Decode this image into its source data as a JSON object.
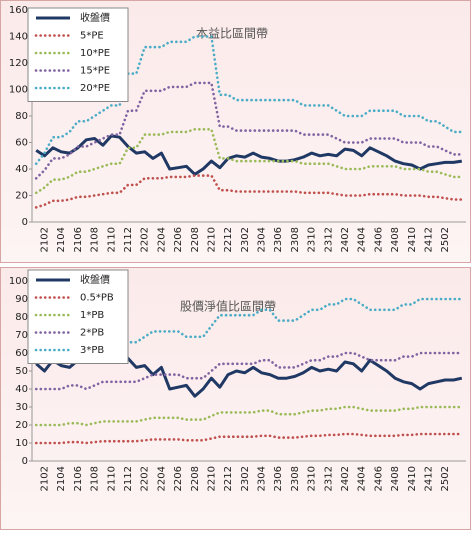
{
  "chart_data": [
    {
      "type": "line",
      "title": "本益比區間帶",
      "categories": [
        null,
        "2102",
        null,
        "2104",
        null,
        "2106",
        null,
        "2108",
        null,
        "2110",
        null,
        "2112",
        null,
        "2202",
        null,
        "2204",
        null,
        "2206",
        null,
        "2208",
        null,
        "2210",
        null,
        "2212",
        null,
        "2302",
        null,
        "2304",
        null,
        "2306",
        null,
        "2308",
        null,
        "2310",
        null,
        "2312",
        null,
        "2402",
        null,
        "2404",
        null,
        "2406",
        null,
        "2408",
        null,
        "2410",
        null,
        "2412",
        null,
        "2502",
        null,
        null
      ],
      "series": [
        {
          "name": "收盤價",
          "color": "#1f3864",
          "style": "solid",
          "values": [
            54,
            50,
            56,
            53,
            52,
            56,
            62,
            63,
            58,
            65,
            64,
            57,
            52,
            53,
            48,
            52,
            40,
            41,
            42,
            36,
            40,
            46,
            41,
            48,
            50,
            49,
            52,
            49,
            48,
            46,
            46,
            47,
            49,
            52,
            50,
            51,
            50,
            55,
            54,
            50,
            56,
            53,
            50,
            46,
            44,
            43,
            40,
            43,
            44,
            45,
            45,
            46
          ]
        },
        {
          "name": "5*PE",
          "color": "#c0504d",
          "style": "dotted",
          "values": [
            11,
            13,
            16,
            16,
            17,
            19,
            19,
            20,
            21,
            22,
            22,
            28,
            28,
            33,
            33,
            33,
            34,
            34,
            34,
            35,
            35,
            35,
            24,
            24,
            23,
            23,
            23,
            23,
            23,
            23,
            23,
            23,
            22,
            22,
            22,
            22,
            21,
            20,
            20,
            20,
            21,
            21,
            21,
            21,
            20,
            20,
            20,
            19,
            19,
            18,
            17,
            17
          ]
        },
        {
          "name": "10*PE",
          "color": "#9bbb59",
          "style": "dotted",
          "values": [
            22,
            26,
            32,
            32,
            34,
            38,
            38,
            40,
            42,
            44,
            44,
            56,
            56,
            66,
            66,
            66,
            68,
            68,
            68,
            70,
            70,
            70,
            48,
            48,
            46,
            46,
            46,
            46,
            46,
            46,
            46,
            46,
            44,
            44,
            44,
            44,
            42,
            40,
            40,
            40,
            42,
            42,
            42,
            42,
            40,
            40,
            40,
            38,
            38,
            36,
            34,
            34
          ]
        },
        {
          "name": "15*PE",
          "color": "#8064a2",
          "style": "dotted",
          "values": [
            33,
            39,
            48,
            48,
            51,
            57,
            57,
            60,
            63,
            66,
            66,
            84,
            84,
            99,
            99,
            99,
            102,
            102,
            102,
            105,
            105,
            105,
            72,
            72,
            69,
            69,
            69,
            69,
            69,
            69,
            69,
            69,
            66,
            66,
            66,
            66,
            63,
            60,
            60,
            60,
            63,
            63,
            63,
            63,
            60,
            60,
            60,
            57,
            57,
            54,
            51,
            51
          ]
        },
        {
          "name": "20*PE",
          "color": "#4bacc6",
          "style": "dotted",
          "values": [
            44,
            52,
            64,
            64,
            68,
            76,
            76,
            80,
            84,
            88,
            88,
            112,
            112,
            132,
            132,
            132,
            136,
            136,
            136,
            140,
            140,
            140,
            96,
            96,
            92,
            92,
            92,
            92,
            92,
            92,
            92,
            92,
            88,
            88,
            88,
            88,
            84,
            80,
            80,
            80,
            84,
            84,
            84,
            84,
            80,
            80,
            80,
            76,
            76,
            72,
            68,
            68
          ]
        }
      ],
      "ylim": [
        0,
        160
      ],
      "yticks": [
        0,
        20,
        40,
        60,
        80,
        100,
        120,
        140,
        160
      ],
      "legend": "upper-left"
    },
    {
      "type": "line",
      "title": "股價淨值比區間帶",
      "categories": [
        null,
        "2102",
        null,
        "2104",
        null,
        "2106",
        null,
        "2108",
        null,
        "2110",
        null,
        "2112",
        null,
        "2202",
        null,
        "2204",
        null,
        "2206",
        null,
        "2208",
        null,
        "2210",
        null,
        "2212",
        null,
        "2302",
        null,
        "2304",
        null,
        "2306",
        null,
        "2308",
        null,
        "2310",
        null,
        "2312",
        null,
        "2402",
        null,
        "2404",
        null,
        "2406",
        null,
        "2408",
        null,
        "2410",
        null,
        "2412",
        null,
        "2502",
        null,
        null
      ],
      "series": [
        {
          "name": "收盤價",
          "color": "#1f3864",
          "style": "solid",
          "values": [
            54,
            50,
            56,
            53,
            52,
            56,
            62,
            63,
            58,
            65,
            64,
            57,
            52,
            53,
            48,
            52,
            40,
            41,
            42,
            36,
            40,
            46,
            41,
            48,
            50,
            49,
            52,
            49,
            48,
            46,
            46,
            47,
            49,
            52,
            50,
            51,
            50,
            55,
            54,
            50,
            56,
            53,
            50,
            46,
            44,
            43,
            40,
            43,
            44,
            45,
            45,
            46
          ]
        },
        {
          "name": "0.5*PB",
          "color": "#c0504d",
          "style": "dotted",
          "values": [
            10,
            10,
            10,
            10,
            10.5,
            10.5,
            10,
            10.5,
            11,
            11,
            11,
            11,
            11,
            11.5,
            12,
            12,
            12,
            12,
            11.5,
            11.5,
            11.5,
            12.5,
            13.5,
            13.5,
            13.5,
            13.5,
            13.5,
            14,
            14,
            13,
            13,
            13,
            13.5,
            14,
            14,
            14.5,
            14.5,
            15,
            15,
            14.5,
            14,
            14,
            14,
            14,
            14.5,
            14.5,
            15,
            15,
            15,
            15,
            15,
            15
          ]
        },
        {
          "name": "1*PB",
          "color": "#9bbb59",
          "style": "dotted",
          "values": [
            20,
            20,
            20,
            20,
            21,
            21,
            20,
            21,
            22,
            22,
            22,
            22,
            22,
            23,
            24,
            24,
            24,
            24,
            23,
            23,
            23,
            25,
            27,
            27,
            27,
            27,
            27,
            28,
            28,
            26,
            26,
            26,
            27,
            28,
            28,
            29,
            29,
            30,
            30,
            29,
            28,
            28,
            28,
            28,
            29,
            29,
            30,
            30,
            30,
            30,
            30,
            30
          ]
        },
        {
          "name": "2*PB",
          "color": "#8064a2",
          "style": "dotted",
          "values": [
            40,
            40,
            40,
            40,
            42,
            42,
            40,
            42,
            44,
            44,
            44,
            44,
            44,
            46,
            48,
            48,
            48,
            48,
            46,
            46,
            46,
            50,
            54,
            54,
            54,
            54,
            54,
            56,
            56,
            52,
            52,
            52,
            54,
            56,
            56,
            58,
            58,
            60,
            60,
            58,
            56,
            56,
            56,
            56,
            58,
            58,
            60,
            60,
            60,
            60,
            60,
            60
          ]
        },
        {
          "name": "3*PB",
          "color": "#4bacc6",
          "style": "dotted",
          "values": [
            60,
            60,
            60,
            60,
            63,
            63,
            60,
            63,
            66,
            66,
            66,
            66,
            66,
            69,
            72,
            72,
            72,
            72,
            69,
            69,
            69,
            75,
            81,
            81,
            81,
            81,
            81,
            84,
            84,
            78,
            78,
            78,
            81,
            84,
            84,
            87,
            87,
            90,
            90,
            87,
            84,
            84,
            84,
            84,
            87,
            87,
            90,
            90,
            90,
            90,
            90,
            90
          ]
        }
      ],
      "ylim": [
        0,
        100
      ],
      "yticks": [
        0,
        10,
        20,
        30,
        40,
        50,
        60,
        70,
        80,
        90,
        100
      ],
      "legend": "upper-left"
    }
  ]
}
